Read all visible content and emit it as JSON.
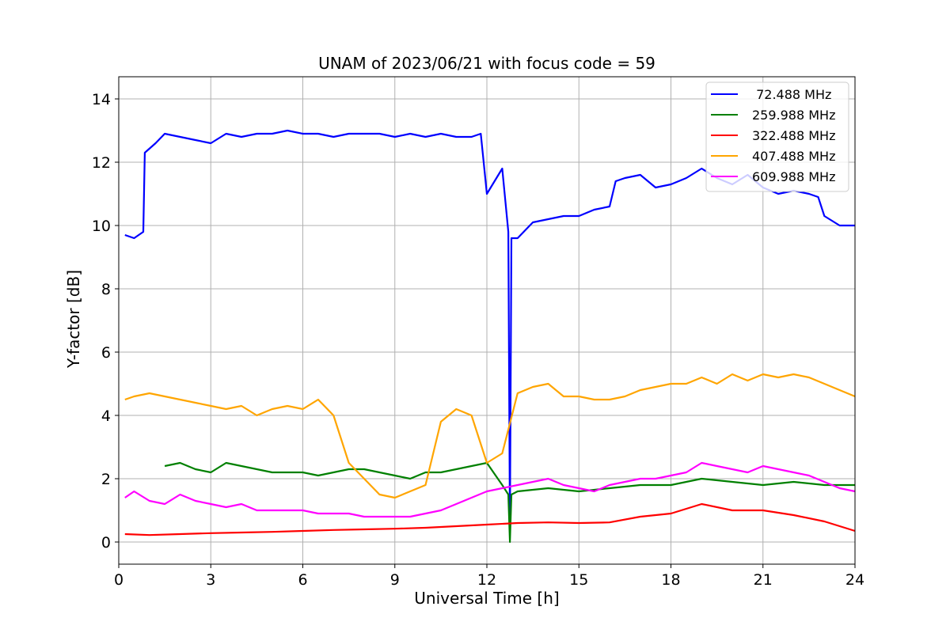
{
  "chart_data": {
    "type": "line",
    "title": "UNAM of 2023/06/21 with focus code = 59",
    "xlabel": "Universal Time [h]",
    "ylabel": "Y-factor [dB]",
    "xlim": [
      0,
      24
    ],
    "ylim": [
      -0.7,
      14.7
    ],
    "xticks": [
      0,
      3,
      6,
      9,
      12,
      15,
      18,
      21,
      24
    ],
    "xtick_labels": [
      "0",
      "3",
      "6",
      "9",
      "12",
      "15",
      "18",
      "21",
      "24"
    ],
    "yticks": [
      0,
      2,
      4,
      6,
      8,
      10,
      12,
      14
    ],
    "ytick_labels": [
      "0",
      "2",
      "4",
      "6",
      "8",
      "10",
      "12",
      "14"
    ],
    "grid": true,
    "legend_position": "top-right",
    "series": [
      {
        "name": " 72.488 MHz",
        "color": "#0000ff",
        "x": [
          0.2,
          0.5,
          0.8,
          0.85,
          1.2,
          1.5,
          2.0,
          2.5,
          3.0,
          3.5,
          4.0,
          4.5,
          5.0,
          5.5,
          6.0,
          6.5,
          7.0,
          7.5,
          8.0,
          8.5,
          9.0,
          9.5,
          10.0,
          10.5,
          11.0,
          11.5,
          11.8,
          12.0,
          12.5,
          12.7,
          12.75,
          12.8,
          13.0,
          13.5,
          14.0,
          14.5,
          15.0,
          15.5,
          16.0,
          16.2,
          16.5,
          17.0,
          17.5,
          18.0,
          18.5,
          19.0,
          19.5,
          20.0,
          20.5,
          21.0,
          21.5,
          22.0,
          22.5,
          22.8,
          23.0,
          23.5,
          24.0
        ],
        "y": [
          9.7,
          9.6,
          9.8,
          12.3,
          12.6,
          12.9,
          12.8,
          12.7,
          12.6,
          12.9,
          12.8,
          12.9,
          12.9,
          13.0,
          12.9,
          12.9,
          12.8,
          12.9,
          12.9,
          12.9,
          12.8,
          12.9,
          12.8,
          12.9,
          12.8,
          12.8,
          12.9,
          11.0,
          11.8,
          9.8,
          0.5,
          9.6,
          9.6,
          10.1,
          10.2,
          10.3,
          10.3,
          10.5,
          10.6,
          11.4,
          11.5,
          11.6,
          11.2,
          11.3,
          11.5,
          11.8,
          11.5,
          11.3,
          11.6,
          11.2,
          11.0,
          11.1,
          11.0,
          10.9,
          10.3,
          10.0,
          10.0
        ]
      },
      {
        "name": "259.988 MHz",
        "color": "#008000",
        "x": [
          1.5,
          2.0,
          2.5,
          3.0,
          3.5,
          4.0,
          4.5,
          5.0,
          5.5,
          6.0,
          6.5,
          7.0,
          7.5,
          8.0,
          8.5,
          9.0,
          9.5,
          10.0,
          10.5,
          11.0,
          11.5,
          12.0,
          12.5,
          12.7,
          12.75,
          12.8,
          13.0,
          14.0,
          15.0,
          16.0,
          17.0,
          18.0,
          19.0,
          20.0,
          21.0,
          22.0,
          23.0,
          24.0
        ],
        "y": [
          2.4,
          2.5,
          2.3,
          2.2,
          2.5,
          2.4,
          2.3,
          2.2,
          2.2,
          2.2,
          2.1,
          2.2,
          2.3,
          2.3,
          2.2,
          2.1,
          2.0,
          2.2,
          2.2,
          2.3,
          2.4,
          2.5,
          1.8,
          1.5,
          0.0,
          1.5,
          1.6,
          1.7,
          1.6,
          1.7,
          1.8,
          1.8,
          2.0,
          1.9,
          1.8,
          1.9,
          1.8,
          1.8
        ]
      },
      {
        "name": "322.488 MHz",
        "color": "#ff0000",
        "x": [
          0.2,
          1.0,
          2.0,
          3.0,
          4.0,
          5.0,
          6.0,
          7.0,
          8.0,
          9.0,
          10.0,
          11.0,
          12.0,
          13.0,
          14.0,
          15.0,
          16.0,
          17.0,
          18.0,
          19.0,
          20.0,
          21.0,
          22.0,
          23.0,
          24.0
        ],
        "y": [
          0.25,
          0.22,
          0.25,
          0.28,
          0.3,
          0.32,
          0.35,
          0.38,
          0.4,
          0.42,
          0.45,
          0.5,
          0.55,
          0.6,
          0.62,
          0.6,
          0.62,
          0.8,
          0.9,
          1.2,
          1.0,
          1.0,
          0.85,
          0.65,
          0.35
        ]
      },
      {
        "name": "407.488 MHz",
        "color": "#ffa500",
        "x": [
          0.2,
          0.5,
          1.0,
          1.5,
          2.0,
          2.5,
          3.0,
          3.5,
          4.0,
          4.5,
          5.0,
          5.5,
          6.0,
          6.5,
          7.0,
          7.5,
          8.0,
          8.5,
          9.0,
          9.5,
          10.0,
          10.5,
          11.0,
          11.5,
          12.0,
          12.5,
          13.0,
          13.5,
          14.0,
          14.5,
          15.0,
          15.5,
          16.0,
          16.5,
          17.0,
          17.5,
          18.0,
          18.5,
          19.0,
          19.5,
          20.0,
          20.5,
          21.0,
          21.5,
          22.0,
          22.5,
          23.0,
          23.5,
          24.0
        ],
        "y": [
          4.5,
          4.6,
          4.7,
          4.6,
          4.5,
          4.4,
          4.3,
          4.2,
          4.3,
          4.0,
          4.2,
          4.3,
          4.2,
          4.5,
          4.0,
          2.5,
          2.0,
          1.5,
          1.4,
          1.6,
          1.8,
          3.8,
          4.2,
          4.0,
          2.5,
          2.8,
          4.7,
          4.9,
          5.0,
          4.6,
          4.6,
          4.5,
          4.5,
          4.6,
          4.8,
          4.9,
          5.0,
          5.0,
          5.2,
          5.0,
          5.3,
          5.1,
          5.3,
          5.2,
          5.3,
          5.2,
          5.0,
          4.8,
          4.6
        ]
      },
      {
        "name": "609.988 MHz",
        "color": "#ff00ff",
        "x": [
          0.2,
          0.5,
          1.0,
          1.5,
          2.0,
          2.5,
          3.0,
          3.5,
          4.0,
          4.5,
          5.0,
          5.5,
          6.0,
          6.5,
          7.0,
          7.5,
          8.0,
          8.5,
          9.0,
          9.5,
          10.0,
          10.5,
          11.0,
          11.5,
          12.0,
          12.5,
          13.0,
          13.5,
          14.0,
          14.5,
          15.0,
          15.5,
          16.0,
          16.5,
          17.0,
          17.5,
          18.0,
          18.5,
          19.0,
          19.5,
          20.0,
          20.5,
          21.0,
          21.5,
          22.0,
          22.5,
          23.0,
          23.5,
          24.0
        ],
        "y": [
          1.4,
          1.6,
          1.3,
          1.2,
          1.5,
          1.3,
          1.2,
          1.1,
          1.2,
          1.0,
          1.0,
          1.0,
          1.0,
          0.9,
          0.9,
          0.9,
          0.8,
          0.8,
          0.8,
          0.8,
          0.9,
          1.0,
          1.2,
          1.4,
          1.6,
          1.7,
          1.8,
          1.9,
          2.0,
          1.8,
          1.7,
          1.6,
          1.8,
          1.9,
          2.0,
          2.0,
          2.1,
          2.2,
          2.5,
          2.4,
          2.3,
          2.2,
          2.4,
          2.3,
          2.2,
          2.1,
          1.9,
          1.7,
          1.6
        ]
      }
    ]
  }
}
